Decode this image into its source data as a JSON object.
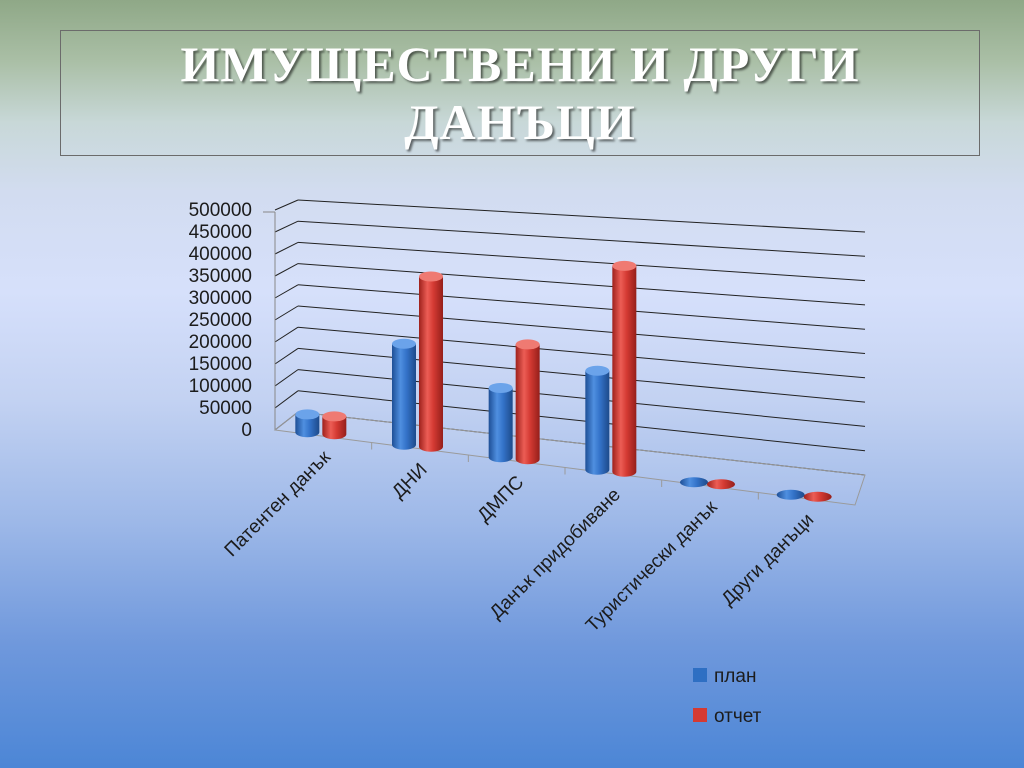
{
  "slide": {
    "title": "ИМУЩЕСТВЕНИ И ДРУГИ ДАНЪЦИ"
  },
  "chart_data": {
    "type": "bar",
    "categories": [
      "Патентен данък",
      "ДНИ",
      "ДМПС",
      "Данък придобиване",
      "Туристически данък",
      "Други данъци"
    ],
    "series": [
      {
        "name": "план",
        "values": [
          45000,
          255000,
          175000,
          250000,
          2000,
          1000
        ],
        "color": "#2e6fc3"
      },
      {
        "name": "отчет",
        "values": [
          45000,
          430000,
          290000,
          520000,
          2000,
          1000
        ],
        "color": "#d43a33"
      }
    ],
    "y_ticks": [
      "0",
      "50000",
      "100000",
      "150000",
      "200000",
      "250000",
      "300000",
      "350000",
      "400000",
      "450000",
      "500000"
    ],
    "ylim": [
      0,
      500000
    ],
    "grid": true,
    "legend_position": "bottom-right",
    "style": "3d-cylinder"
  }
}
